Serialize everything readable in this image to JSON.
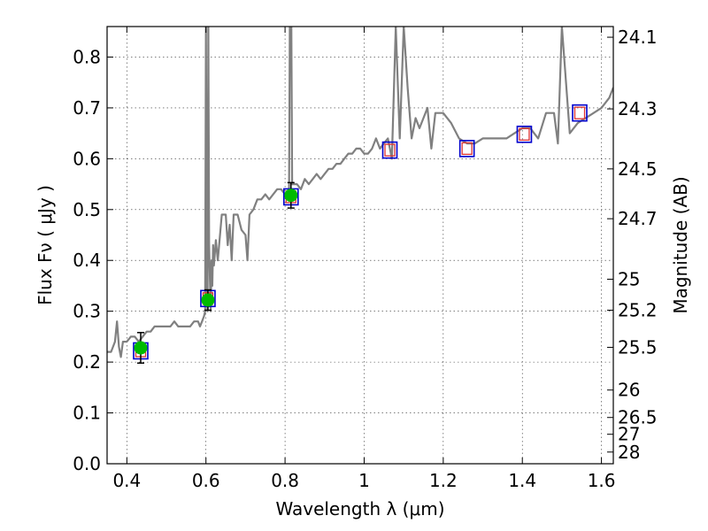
{
  "chart_data": {
    "type": "line",
    "xlabel": "Wavelength  λ (μm)",
    "ylabel": "Flux  Fν  ( μJy )",
    "ylabel_right": "Magnitude (AB)",
    "xlim": [
      0.35,
      1.63
    ],
    "ylim": [
      0.0,
      0.86
    ],
    "grid": true,
    "x_ticks": [
      0.4,
      0.6,
      0.8,
      1.0,
      1.2,
      1.4,
      1.6
    ],
    "x_tick_labels": [
      "0.4",
      "0.6",
      "0.8",
      "1",
      "1.2",
      "1.4",
      "1.6"
    ],
    "y_ticks": [
      0.0,
      0.1,
      0.2,
      0.3,
      0.4,
      0.5,
      0.6,
      0.7,
      0.8
    ],
    "y_tick_labels": [
      "0.0",
      "0.1",
      "0.2",
      "0.3",
      "0.4",
      "0.5",
      "0.6",
      "0.7",
      "0.8"
    ],
    "right_ticks": [
      {
        "flux": 0.839,
        "label": "24.1"
      },
      {
        "flux": 0.698,
        "label": "24.3"
      },
      {
        "flux": 0.58,
        "label": "24.5"
      },
      {
        "flux": 0.482,
        "label": "24.7"
      },
      {
        "flux": 0.363,
        "label": "25"
      },
      {
        "flux": 0.302,
        "label": "25.2"
      },
      {
        "flux": 0.229,
        "label": "25.5"
      },
      {
        "flux": 0.145,
        "label": "26"
      },
      {
        "flux": 0.091,
        "label": "26.5"
      },
      {
        "flux": 0.058,
        "label": "27"
      },
      {
        "flux": 0.023,
        "label": "28"
      }
    ],
    "colors": {
      "spectrum": "#808080",
      "photometry": "#00bb00",
      "model_box": "#0000cc",
      "model_box_inner": "#dd3333",
      "errorbar": "#000000"
    },
    "series": [
      {
        "kind": "spectrum",
        "x": [
          0.35,
          0.36,
          0.37,
          0.375,
          0.38,
          0.385,
          0.39,
          0.4,
          0.41,
          0.42,
          0.43,
          0.44,
          0.45,
          0.46,
          0.47,
          0.48,
          0.49,
          0.5,
          0.51,
          0.52,
          0.53,
          0.54,
          0.55,
          0.56,
          0.57,
          0.58,
          0.585,
          0.59,
          0.595,
          0.598,
          0.6,
          0.602,
          0.604,
          0.606,
          0.608,
          0.61,
          0.612,
          0.614,
          0.616,
          0.618,
          0.62,
          0.625,
          0.63,
          0.64,
          0.65,
          0.655,
          0.66,
          0.665,
          0.67,
          0.68,
          0.69,
          0.7,
          0.705,
          0.71,
          0.72,
          0.73,
          0.74,
          0.75,
          0.76,
          0.77,
          0.78,
          0.79,
          0.8,
          0.81,
          0.812,
          0.814,
          0.816,
          0.818,
          0.82,
          0.83,
          0.84,
          0.85,
          0.86,
          0.87,
          0.88,
          0.89,
          0.9,
          0.91,
          0.92,
          0.93,
          0.94,
          0.95,
          0.96,
          0.97,
          0.98,
          0.99,
          1.0,
          1.01,
          1.02,
          1.03,
          1.04,
          1.05,
          1.06,
          1.07,
          1.08,
          1.09,
          1.1,
          1.11,
          1.12,
          1.13,
          1.14,
          1.15,
          1.16,
          1.17,
          1.18,
          1.2,
          1.22,
          1.24,
          1.26,
          1.28,
          1.3,
          1.32,
          1.34,
          1.36,
          1.38,
          1.4,
          1.42,
          1.44,
          1.46,
          1.48,
          1.49,
          1.5,
          1.52,
          1.54,
          1.56,
          1.58,
          1.6,
          1.62,
          1.63
        ],
        "y": [
          0.22,
          0.22,
          0.24,
          0.28,
          0.23,
          0.21,
          0.24,
          0.24,
          0.25,
          0.25,
          0.24,
          0.25,
          0.26,
          0.26,
          0.27,
          0.27,
          0.27,
          0.27,
          0.27,
          0.28,
          0.27,
          0.27,
          0.27,
          0.27,
          0.28,
          0.28,
          0.27,
          0.28,
          0.29,
          0.3,
          0.86,
          0.4,
          0.3,
          0.86,
          0.43,
          0.36,
          0.3,
          0.4,
          0.35,
          0.43,
          0.39,
          0.44,
          0.4,
          0.49,
          0.49,
          0.43,
          0.47,
          0.4,
          0.49,
          0.49,
          0.46,
          0.45,
          0.4,
          0.49,
          0.5,
          0.52,
          0.52,
          0.53,
          0.52,
          0.53,
          0.54,
          0.54,
          0.53,
          0.53,
          0.86,
          0.86,
          0.86,
          0.55,
          0.55,
          0.55,
          0.54,
          0.56,
          0.55,
          0.56,
          0.57,
          0.56,
          0.57,
          0.58,
          0.58,
          0.59,
          0.59,
          0.6,
          0.61,
          0.61,
          0.62,
          0.62,
          0.61,
          0.61,
          0.62,
          0.64,
          0.62,
          0.63,
          0.64,
          0.6,
          0.86,
          0.64,
          0.86,
          0.74,
          0.64,
          0.68,
          0.66,
          0.68,
          0.7,
          0.62,
          0.69,
          0.69,
          0.67,
          0.64,
          0.63,
          0.63,
          0.64,
          0.64,
          0.64,
          0.64,
          0.65,
          0.66,
          0.66,
          0.64,
          0.69,
          0.69,
          0.63,
          0.86,
          0.65,
          0.67,
          0.68,
          0.69,
          0.7,
          0.72,
          0.74
        ]
      },
      {
        "kind": "photometry",
        "x": [
          0.435,
          0.605,
          0.815
        ],
        "y": [
          0.228,
          0.322,
          0.528
        ],
        "yerr": [
          0.03,
          0.02,
          0.025
        ]
      },
      {
        "kind": "model",
        "x": [
          0.435,
          0.605,
          0.815,
          1.065,
          1.26,
          1.405,
          1.545
        ],
        "y": [
          0.222,
          0.325,
          0.525,
          0.617,
          0.62,
          0.648,
          0.69
        ]
      }
    ]
  }
}
